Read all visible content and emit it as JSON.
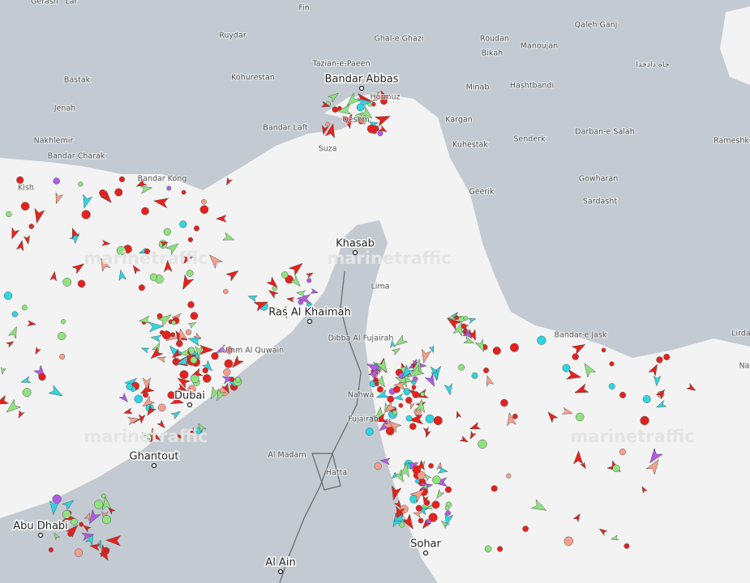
{
  "map": {
    "places": [
      "Gerash",
      "Lar",
      "Fin",
      "Ruydar",
      "Ghal-e Ghazi",
      "Roudan",
      "Qaleh Ganj",
      "Manoujan",
      "Bikah",
      "Tazian-e-Paeen",
      "چاه دادخدا",
      "Bastak",
      "Kohurestan",
      "Hashtbandi",
      "Minab",
      "Hormuz",
      "Jenah",
      "Qeshm",
      "Kargan",
      "Bandar Laft",
      "Senderk",
      "Darban-e Salah",
      "Nakhlemir",
      "Kuhestak",
      "Suza",
      "Rameshk",
      "Bandar Charak",
      "Bandar Kong",
      "Kish",
      "Gowharan",
      "Geerik",
      "Sardasht",
      "Lima",
      "Bandar-e Jask",
      "Lirda",
      "Dibba Al Fujairah",
      "Umm Al Quwain",
      "Nahwa",
      "Fujairah",
      "Al Madam",
      "Hatta",
      "Na"
    ],
    "major_places": [
      "Bandar Abbas",
      "Khasab",
      "Ras Al Khaimah",
      "Dubai",
      "Ghantout",
      "Abu Dhabi",
      "Sohar",
      "Al Ain"
    ],
    "watermarks": [
      "marinetraffic",
      "marinetraffic",
      "marinetraffic",
      "marinetraffic"
    ]
  }
}
